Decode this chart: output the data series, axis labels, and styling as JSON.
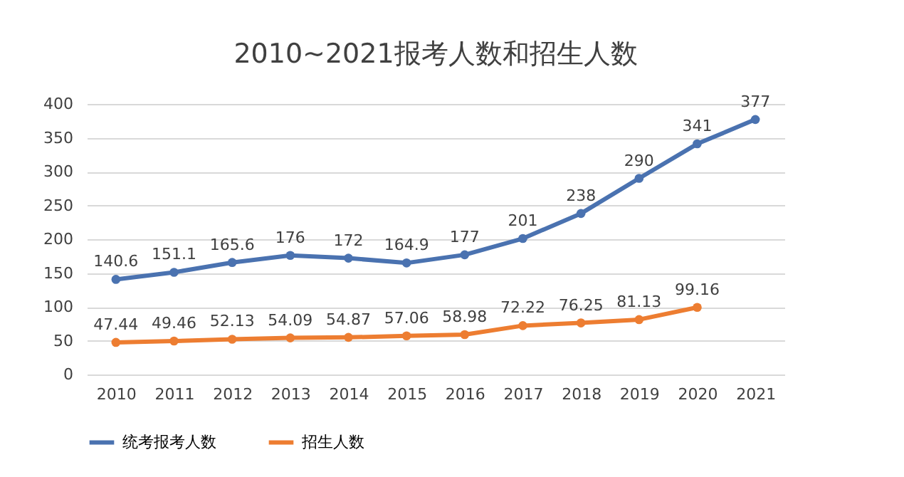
{
  "chart_data": {
    "type": "line",
    "title": "2010~2021报考人数和招生人数",
    "categories": [
      "2010",
      "2011",
      "2012",
      "2013",
      "2014",
      "2015",
      "2016",
      "2017",
      "2018",
      "2019",
      "2020",
      "2021"
    ],
    "series": [
      {
        "name": "统考报考人数",
        "color": "#4a72b0",
        "values": [
          140.6,
          151.1,
          165.6,
          176,
          172,
          164.9,
          177,
          201,
          238,
          290,
          341,
          377
        ]
      },
      {
        "name": "招生人数",
        "color": "#ed7d31",
        "values": [
          47.44,
          49.46,
          52.13,
          54.09,
          54.87,
          57.06,
          58.98,
          72.22,
          76.25,
          81.13,
          99.16,
          null
        ]
      }
    ],
    "ylim": [
      0,
      400
    ],
    "yticks": [
      0,
      50,
      100,
      150,
      200,
      250,
      300,
      350,
      400
    ],
    "grid": "y",
    "legend": "bottom",
    "marker": "circle",
    "line_style": "solid",
    "data_labels": true
  }
}
